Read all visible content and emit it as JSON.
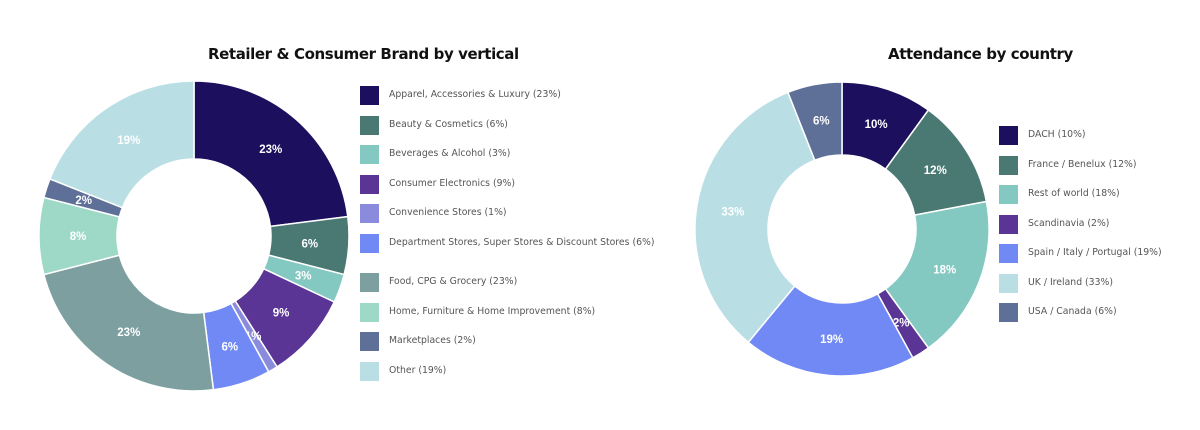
{
  "chart_data": [
    {
      "type": "pie",
      "variant": "donut",
      "title": "Retailer & Consumer Brand by vertical",
      "start_angle": "12 o'clock",
      "direction": "clockwise",
      "legend_position": "right",
      "categories": [
        "Apparel, Accessories & Luxury",
        "Beauty & Cosmetics",
        "Beverages & Alcohol",
        "Consumer Electronics",
        "Convenience Stores",
        "Department Stores, Super Stores & Discount Stores",
        "Food, CPG & Grocery",
        "Home, Furniture & Home Improvement",
        "Marketplaces",
        "Other"
      ],
      "values": [
        23,
        6,
        3,
        9,
        1,
        6,
        23,
        8,
        2,
        19
      ],
      "unit": "%",
      "colors": [
        "#1b0f5e",
        "#4a7873",
        "#84c8c2",
        "#5a3596",
        "#8a8bdc",
        "#7189f5",
        "#7e9fa0",
        "#9ed9c7",
        "#5e6f98",
        "#b9dfe4"
      ],
      "slice_labels": [
        "23%",
        "6%",
        "3%",
        "9%",
        "1%",
        "6%",
        "23%",
        "8%",
        "2%",
        "19%"
      ],
      "legend_labels": [
        "Apparel, Accessories & Luxury (23%)",
        "Beauty & Cosmetics (6%)",
        "Beverages & Alcohol (3%)",
        "Consumer Electronics (9%)",
        "Convenience Stores (1%)",
        "Department Stores, Super Stores & Discount Stores (6%)",
        "Food, CPG & Grocery (23%)",
        "Home, Furniture & Home Improvement (8%)",
        "Marketplaces (2%)",
        "Other (19%)"
      ]
    },
    {
      "type": "pie",
      "variant": "donut",
      "title": "Attendance by country",
      "start_angle": "12 o'clock",
      "direction": "clockwise",
      "legend_position": "right",
      "categories": [
        "DACH",
        "France / Benelux",
        "Rest of world",
        "Scandinavia",
        "Spain / Italy / Portugal",
        "UK / Ireland",
        "USA / Canada"
      ],
      "values": [
        10,
        12,
        18,
        2,
        19,
        33,
        6
      ],
      "unit": "%",
      "colors": [
        "#1b0f5e",
        "#4a7873",
        "#84c8c2",
        "#5a3596",
        "#7189f5",
        "#b9dfe4",
        "#5e6f98"
      ],
      "slice_labels": [
        "10%",
        "12%",
        "18%",
        "2%",
        "19%",
        "33%",
        "6%"
      ],
      "legend_labels": [
        "DACH (10%)",
        "France / Benelux (12%)",
        "Rest of world (18%)",
        "Scandinavia (2%)",
        "Spain / Italy / Portugal (19%)",
        "UK / Ireland (33%)",
        "USA / Canada (6%)"
      ]
    }
  ],
  "charts": [
    {
      "title": "Retailer & Consumer Brand by vertical"
    },
    {
      "title": "Attendance by country"
    }
  ]
}
